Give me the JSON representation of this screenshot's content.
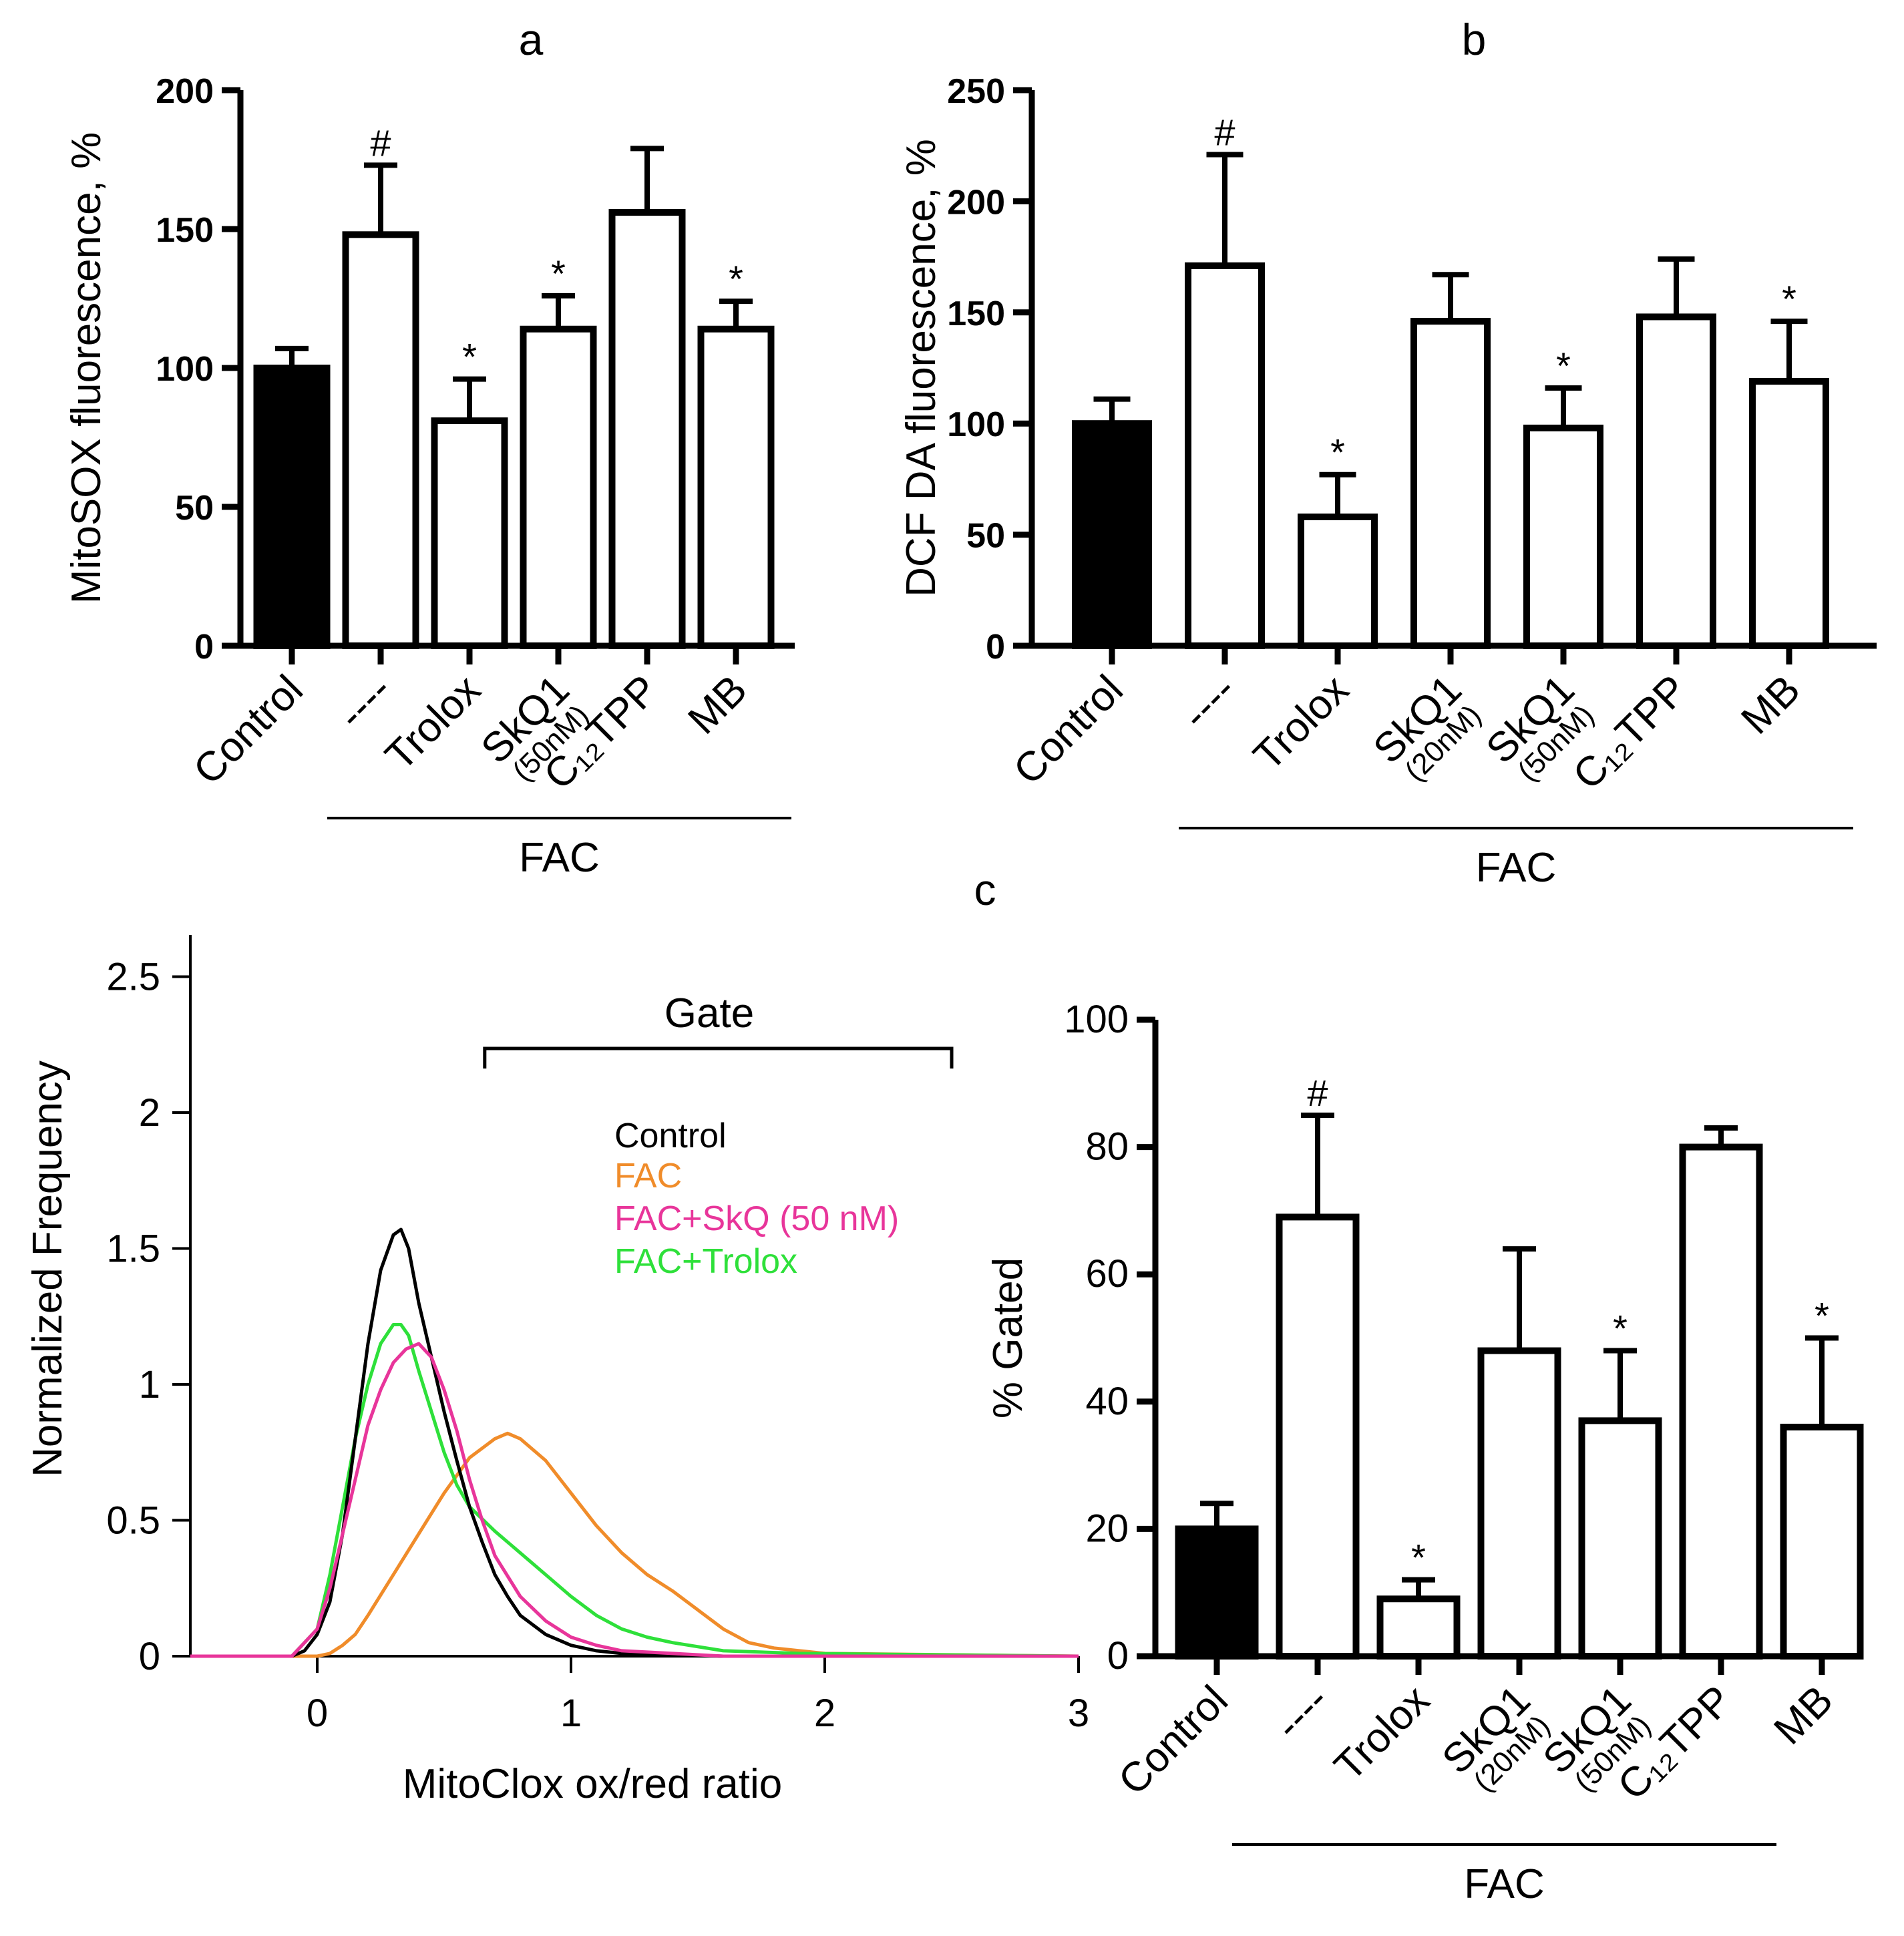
{
  "chart_data": [
    {
      "id": "a",
      "type": "bar",
      "panel_label": "a",
      "title": "",
      "ylabel": "MitoSOX fluorescence, %",
      "ylim": [
        0,
        200
      ],
      "yticks": [
        0,
        50,
        100,
        150,
        200
      ],
      "group_label": "FAC",
      "categories": [
        {
          "label": "Control",
          "sub": ""
        },
        {
          "label": "----",
          "sub": ""
        },
        {
          "label": "Trolox",
          "sub": ""
        },
        {
          "label": "SkQ1",
          "sub": "(50nM)"
        },
        {
          "label": "C₁₂TPP",
          "sub": ""
        },
        {
          "label": "MB",
          "sub": ""
        }
      ],
      "values": [
        100,
        148,
        81,
        114,
        156,
        114
      ],
      "errors": [
        7,
        25,
        15,
        12,
        23,
        10
      ],
      "fills": [
        "#000000",
        "#ffffff",
        "#ffffff",
        "#ffffff",
        "#ffffff",
        "#ffffff"
      ],
      "significance": [
        "",
        "#",
        "*",
        "*",
        "",
        "*"
      ]
    },
    {
      "id": "b",
      "type": "bar",
      "panel_label": "b",
      "title": "",
      "ylabel": "DCF DA fluorescence, %",
      "ylim": [
        0,
        250
      ],
      "yticks": [
        0,
        50,
        100,
        150,
        200,
        250
      ],
      "group_label": "FAC",
      "categories": [
        {
          "label": "Control",
          "sub": ""
        },
        {
          "label": "----",
          "sub": ""
        },
        {
          "label": "Trolox",
          "sub": ""
        },
        {
          "label": "SkQ1",
          "sub": "(20nM)"
        },
        {
          "label": "SkQ1",
          "sub": "(50nM)"
        },
        {
          "label": "C₁₂TPP",
          "sub": ""
        },
        {
          "label": "MB",
          "sub": ""
        }
      ],
      "values": [
        100,
        171,
        58,
        146,
        98,
        148,
        119
      ],
      "errors": [
        11,
        50,
        19,
        21,
        18,
        26,
        27
      ],
      "fills": [
        "#000000",
        "#ffffff",
        "#ffffff",
        "#ffffff",
        "#ffffff",
        "#ffffff",
        "#ffffff"
      ],
      "significance": [
        "",
        "#",
        "*",
        "",
        "*",
        "",
        "*"
      ]
    },
    {
      "id": "c-hist",
      "type": "line",
      "panel_label": "c",
      "title": "",
      "xlabel": "MitoClox ox/red ratio",
      "ylabel": "Normalized Frequency",
      "xlim": [
        -0.5,
        3
      ],
      "ylim": [
        0,
        2.6
      ],
      "xticks": [
        0,
        1,
        2,
        3
      ],
      "yticks": [
        0,
        0.5,
        1,
        1.5,
        2,
        2.5
      ],
      "gate_label": "Gate",
      "gate_range": [
        0.66,
        2.5
      ],
      "legend_position": "top-right",
      "series": [
        {
          "name": "Control",
          "color": "#000000",
          "x": [
            -0.5,
            -0.1,
            -0.05,
            0.0,
            0.05,
            0.1,
            0.15,
            0.2,
            0.25,
            0.3,
            0.33,
            0.36,
            0.4,
            0.45,
            0.5,
            0.55,
            0.6,
            0.65,
            0.7,
            0.75,
            0.8,
            0.9,
            1.0,
            1.1,
            1.2,
            1.4,
            1.6,
            3.0
          ],
          "y": [
            0,
            0,
            0.02,
            0.08,
            0.2,
            0.45,
            0.8,
            1.15,
            1.42,
            1.55,
            1.57,
            1.5,
            1.3,
            1.1,
            0.9,
            0.72,
            0.55,
            0.42,
            0.3,
            0.22,
            0.15,
            0.08,
            0.04,
            0.02,
            0.01,
            0.005,
            0,
            0
          ]
        },
        {
          "name": "FAC",
          "color": "#f08c2a",
          "x": [
            -0.5,
            0.0,
            0.05,
            0.1,
            0.15,
            0.2,
            0.3,
            0.4,
            0.5,
            0.6,
            0.7,
            0.75,
            0.8,
            0.9,
            1.0,
            1.1,
            1.2,
            1.3,
            1.4,
            1.5,
            1.6,
            1.7,
            1.8,
            1.9,
            2.0,
            3.0
          ],
          "y": [
            0,
            0,
            0.01,
            0.04,
            0.08,
            0.15,
            0.3,
            0.45,
            0.6,
            0.73,
            0.8,
            0.82,
            0.8,
            0.72,
            0.6,
            0.48,
            0.38,
            0.3,
            0.24,
            0.17,
            0.1,
            0.05,
            0.03,
            0.02,
            0.01,
            0
          ]
        },
        {
          "name": "FAC+SkQ (50 nM)",
          "color": "#e8359a",
          "x": [
            -0.5,
            -0.1,
            0.0,
            0.05,
            0.1,
            0.15,
            0.2,
            0.25,
            0.3,
            0.35,
            0.4,
            0.45,
            0.5,
            0.55,
            0.6,
            0.65,
            0.7,
            0.8,
            0.9,
            1.0,
            1.1,
            1.2,
            1.4,
            1.6,
            3.0
          ],
          "y": [
            0,
            0,
            0.1,
            0.25,
            0.45,
            0.65,
            0.85,
            0.98,
            1.08,
            1.13,
            1.15,
            1.1,
            0.98,
            0.83,
            0.65,
            0.5,
            0.37,
            0.22,
            0.13,
            0.07,
            0.04,
            0.02,
            0.01,
            0,
            0
          ]
        },
        {
          "name": "FAC+Trolox",
          "color": "#2ee03a",
          "x": [
            -0.5,
            -0.1,
            0.0,
            0.05,
            0.1,
            0.15,
            0.2,
            0.25,
            0.3,
            0.33,
            0.36,
            0.4,
            0.45,
            0.5,
            0.55,
            0.6,
            0.7,
            0.8,
            0.9,
            1.0,
            1.1,
            1.2,
            1.3,
            1.4,
            1.6,
            1.9,
            3.0
          ],
          "y": [
            0,
            0,
            0.1,
            0.3,
            0.55,
            0.8,
            1.0,
            1.15,
            1.22,
            1.22,
            1.18,
            1.05,
            0.9,
            0.75,
            0.63,
            0.55,
            0.46,
            0.38,
            0.3,
            0.22,
            0.15,
            0.1,
            0.07,
            0.05,
            0.02,
            0.01,
            0
          ]
        }
      ]
    },
    {
      "id": "c-bar",
      "type": "bar",
      "panel_label": "",
      "title": "",
      "ylabel": "% Gated",
      "ylim": [
        0,
        100
      ],
      "yticks": [
        0,
        20,
        40,
        60,
        80,
        100
      ],
      "group_label": "FAC",
      "categories": [
        {
          "label": "Control",
          "sub": ""
        },
        {
          "label": "----",
          "sub": ""
        },
        {
          "label": "Trolox",
          "sub": ""
        },
        {
          "label": "SkQ1",
          "sub": "(20nM)"
        },
        {
          "label": "SkQ1",
          "sub": "(50nM)"
        },
        {
          "label": "C₁₂TPP",
          "sub": ""
        },
        {
          "label": "MB",
          "sub": ""
        }
      ],
      "values": [
        20,
        69,
        9,
        48,
        37,
        80,
        36
      ],
      "errors": [
        4,
        16,
        3,
        16,
        11,
        3,
        14
      ],
      "fills": [
        "#000000",
        "#ffffff",
        "#ffffff",
        "#ffffff",
        "#ffffff",
        "#ffffff",
        "#ffffff"
      ],
      "significance": [
        "",
        "#",
        "*",
        "",
        "*",
        "",
        "*"
      ]
    }
  ]
}
